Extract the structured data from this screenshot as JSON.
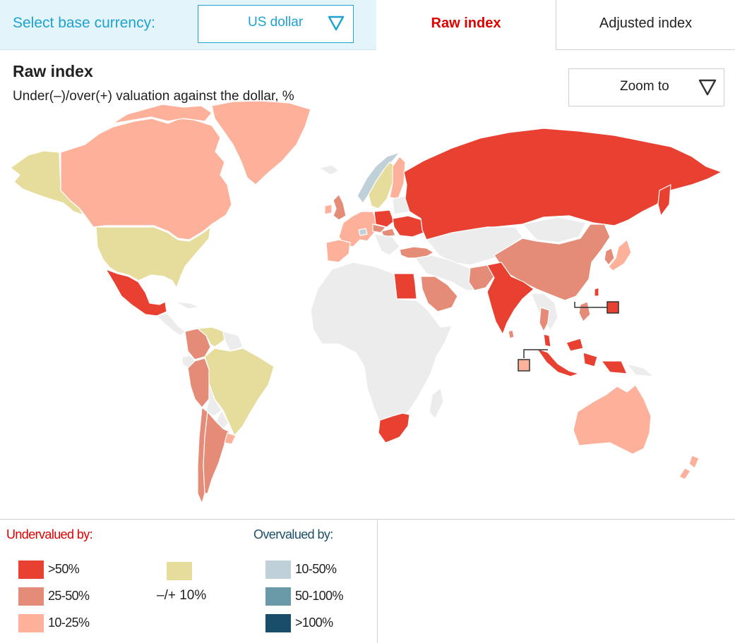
{
  "header": {
    "currency_label": "Select base currency:",
    "currency_value": "US dollar",
    "tabs": [
      {
        "label": "Raw index",
        "active": true
      },
      {
        "label": "Adjusted index",
        "active": false
      }
    ]
  },
  "main": {
    "title": "Raw index",
    "subtitle": "Under(–)/over(+) valuation against the dollar, %",
    "zoom_label": "Zoom to"
  },
  "colors": {
    "under_50": "#e84132",
    "under_25_50": "#e58c78",
    "under_10_25": "#fdb19b",
    "neutral": "#e6dc9b",
    "over_10_50": "#bfd0d9",
    "over_50_100": "#6a9aa8",
    "over_100": "#184e6a",
    "no_data": "#ececec",
    "accent": "#1ea3d1",
    "active_tab": "#e00000"
  },
  "legend": {
    "under_title": "Undervalued by:",
    "over_title": "Overvalued by:",
    "under_items": [
      {
        "label": ">50%",
        "color": "#e84132"
      },
      {
        "label": "25-50%",
        "color": "#e58c78"
      },
      {
        "label": "10-25%",
        "color": "#fdb19b"
      }
    ],
    "neutral_item": {
      "label": "–/+ 10%",
      "color": "#e6dc9b"
    },
    "over_items": [
      {
        "label": "10-50%",
        "color": "#bfd0d9"
      },
      {
        "label": "50-100%",
        "color": "#6a9aa8"
      },
      {
        "label": ">100%",
        "color": "#184e6a"
      }
    ]
  }
}
